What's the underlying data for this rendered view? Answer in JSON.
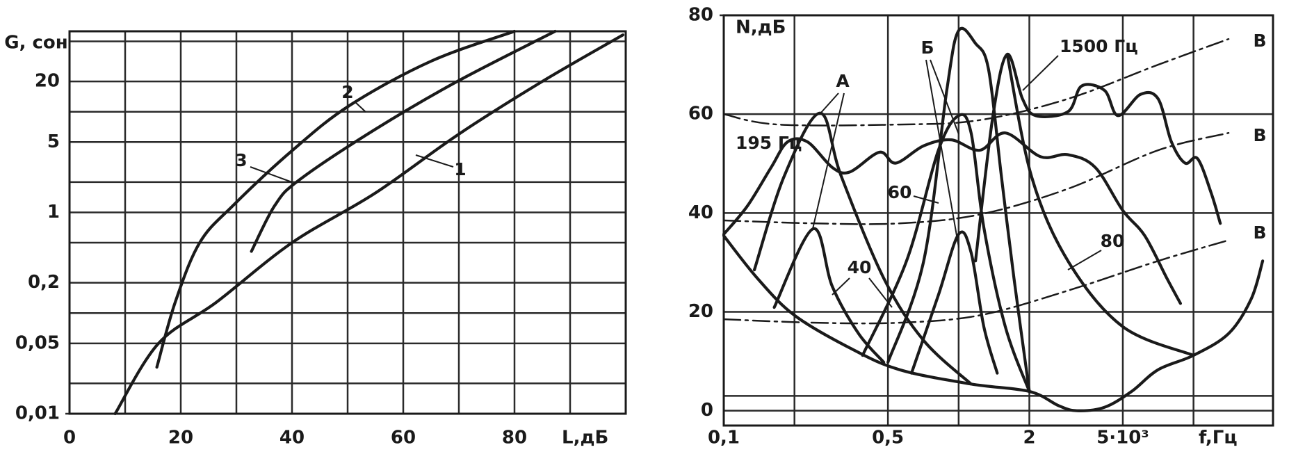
{
  "chart_data": [
    {
      "type": "line",
      "ylabel": "G, сон",
      "xlabel": "L,дБ",
      "xlim": [
        0,
        100
      ],
      "ylim": [
        0.01,
        63
      ],
      "ylog": true,
      "xticks": [
        0,
        20,
        40,
        60,
        80
      ],
      "yticks": [
        {
          "value": 0.01,
          "label": "0,01"
        },
        {
          "value": 0.05,
          "label": "0,05"
        },
        {
          "value": 0.2,
          "label": "0,2"
        },
        1,
        5,
        20
      ],
      "xgrid": [
        10,
        30,
        50,
        70,
        90
      ],
      "ygrid": [
        0.02,
        0.1,
        0.5,
        2,
        10,
        50
      ],
      "series": [
        {
          "color": "#1a1a1a",
          "x": [
            8.2,
            16,
            26.4,
            40,
            55,
            70,
            85,
            99.5
          ],
          "values": [
            0.01,
            0.05,
            0.128,
            0.5,
            1.56,
            6,
            20,
            58
          ]
        },
        {
          "color": "#1a1a1a",
          "x": [
            15.7,
            19,
            23.4,
            29.4,
            40,
            50.3,
            65,
            80
          ],
          "values": [
            0.029,
            0.128,
            0.5,
            1.17,
            4.1,
            11.5,
            31.8,
            63
          ]
        },
        {
          "color": "#1a1a1a",
          "x": [
            32.7,
            36.9,
            41.3,
            54.8,
            69.7,
            87.3
          ],
          "values": [
            0.41,
            1.17,
            2.1,
            6.6,
            20,
            63
          ]
        }
      ],
      "annotations": [
        "1",
        "2",
        "3"
      ]
    },
    {
      "type": "line",
      "ylabel": "N,дБ",
      "xlabel": "f,Гц",
      "xlim": [
        0.1,
        21.8
      ],
      "xlog": true,
      "ylim": [
        -3,
        80
      ],
      "xticks": [
        {
          "value": 0.1,
          "label": "0,1"
        },
        {
          "value": 0.5,
          "label": "0,5"
        },
        2,
        {
          "value": 5,
          "label": "5·10³"
        }
      ],
      "yticks": [
        0,
        20,
        40,
        60,
        80
      ],
      "xgrid": [
        0.2,
        1,
        10
      ],
      "ygrid": [
        3
      ],
      "series": [
        {
          "color": "#1a1a1a",
          "x": [
            0.1,
            0.139,
            0.2,
            0.344,
            0.56,
            1.13,
            2,
            2.67,
            3.19,
            4.18,
            5.45,
            7.07,
            10,
            14.1,
            17.6,
            19.7
          ],
          "values": [
            35.4,
            26.8,
            19.3,
            12.7,
            8.3,
            5.4,
            3.9,
            1.0,
            0,
            0.7,
            3.9,
            8.3,
            11.2,
            15.6,
            22.6,
            30.3
          ]
        },
        {
          "color": "#1a1a1a",
          "x": [
            0.1,
            0.126,
            0.159,
            0.187,
            0.227,
            0.29,
            0.344,
            0.46,
            0.54,
            0.71,
            0.93,
            1.23,
            1.58,
            2.23,
            2.92,
            3.82,
            5,
            6.2,
            7.7,
            8.8
          ],
          "values": [
            35.7,
            41.4,
            49.2,
            54.4,
            54.4,
            49.2,
            48.3,
            52.3,
            50.1,
            53.6,
            54.8,
            52.7,
            56.2,
            51.4,
            51.8,
            49.2,
            40.5,
            35.4,
            26.8,
            21.7
          ]
        },
        {
          "color": "#1a1a1a",
          "x": [
            1.18,
            1.4,
            1.61,
            1.87,
            2.13,
            2.92,
            3.34,
            4.18,
            4.77,
            5.95,
            7.07,
            8.05,
            9.2,
            10.4,
            11.9,
            13
          ],
          "values": [
            30.3,
            59.7,
            72.1,
            63.1,
            59.7,
            60.5,
            65.7,
            64.8,
            59.7,
            64,
            63.1,
            54.4,
            50.1,
            51,
            44,
            37.9
          ]
        },
        {
          "color": "#1a1a1a",
          "x": [
            1.61,
            2.04,
            2.92,
            5,
            10
          ],
          "values": [
            72.1,
            47.5,
            30.3,
            17,
            11.2
          ]
        },
        {
          "color": "#1a1a1a",
          "x": [
            0.5,
            0.71,
            0.89,
            1,
            1.18,
            1.34,
            1.52,
            1.72,
            2
          ],
          "values": [
            9.8,
            30.3,
            64.8,
            76.9,
            74.3,
            69.1,
            47.5,
            26.8,
            3.9
          ]
        },
        {
          "color": "#1a1a1a",
          "x": [
            0.135,
            0.181,
            0.257,
            0.316,
            0.48,
            0.71,
            1.13
          ],
          "values": [
            28.5,
            47.5,
            60.2,
            47.5,
            26.8,
            14.2,
            5.4
          ]
        },
        {
          "color": "#1a1a1a",
          "x": [
            0.164,
            0.24,
            0.29,
            0.375,
            0.48
          ],
          "values": [
            20.9,
            36.8,
            25.1,
            15.6,
            9.8
          ]
        },
        {
          "color": "#1a1a1a",
          "x": [
            0.39,
            0.6,
            0.82,
            1,
            1.13,
            1.28,
            1.58,
            2
          ],
          "values": [
            11.2,
            30.3,
            52.7,
            59.7,
            56.2,
            37.1,
            17,
            3.9
          ]
        },
        {
          "color": "#1a1a1a",
          "x": [
            0.63,
            0.82,
            1,
            1.13,
            1.28,
            1.46
          ],
          "values": [
            7.6,
            23.4,
            35.7,
            32,
            17,
            7.6
          ]
        },
        {
          "color": "#1a1a1a",
          "style": "dash-dot",
          "x": [
            0.1,
            0.17,
            0.56,
            1.23,
            2.92,
            7.07,
            14.1
          ],
          "values": [
            60,
            57.9,
            57.9,
            58.8,
            63.1,
            70,
            75.2
          ]
        },
        {
          "color": "#1a1a1a",
          "style": "dash-dot",
          "x": [
            0.1,
            0.246,
            0.56,
            1.23,
            2.92,
            7.07,
            14.1
          ],
          "values": [
            38.5,
            37.9,
            37.9,
            39.7,
            44.9,
            52.7,
            56.2
          ]
        },
        {
          "color": "#1a1a1a",
          "style": "dash-dot",
          "x": [
            0.1,
            0.246,
            0.56,
            1.23,
            2.92,
            7.07,
            14.1
          ],
          "values": [
            18.5,
            17.8,
            17.8,
            19.3,
            24.3,
            30.3,
            34.5
          ]
        }
      ],
      "annotations": [
        "А",
        "Б",
        "1500 Гц",
        "195 Гц",
        "60",
        "40",
        "80",
        "В",
        "В",
        "В"
      ]
    }
  ]
}
